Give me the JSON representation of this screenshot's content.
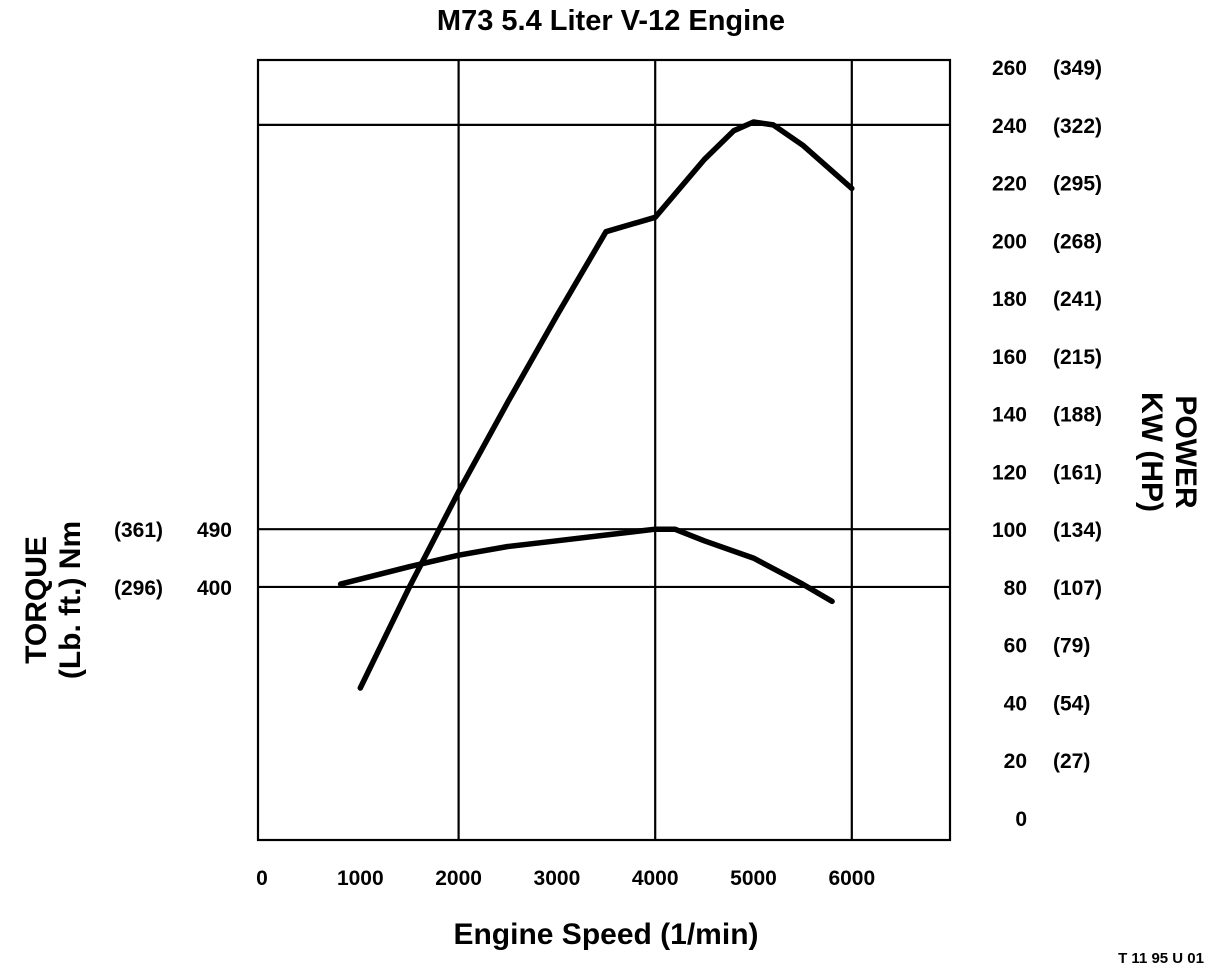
{
  "chart_data": {
    "type": "line",
    "title": "M73 5.4 Liter V-12 Engine",
    "xlabel": "Engine Speed (1/min)",
    "ylabel_left": "TORQUE (Lb. ft.) Nm",
    "ylabel_left_lines": [
      "TORQUE",
      "(Lb. ft.) Nm"
    ],
    "ylabel_right": "POWER KW (HP)",
    "ylabel_right_lines": [
      "POWER",
      "KW (HP)"
    ],
    "xlim": [
      0,
      7000
    ],
    "x_ticks": [
      "0",
      "1000",
      "2000",
      "3000",
      "4000",
      "5000",
      "6000"
    ],
    "x_tick_values": [
      0,
      1000,
      2000,
      3000,
      4000,
      5000,
      6000
    ],
    "x_gridlines": [
      2000,
      4000,
      6000
    ],
    "power_axis": {
      "ylim": [
        0,
        270
      ],
      "ticks_kw": [
        "0",
        "20",
        "40",
        "60",
        "80",
        "100",
        "120",
        "140",
        "160",
        "180",
        "200",
        "220",
        "240",
        "260"
      ],
      "tick_values": [
        0,
        20,
        40,
        60,
        80,
        100,
        120,
        140,
        160,
        180,
        200,
        220,
        240,
        260
      ],
      "ticks_hp": [
        "",
        "(27)",
        "(54)",
        "(79)",
        "(107)",
        "(134)",
        "(161)",
        "(188)",
        "(215)",
        "(241)",
        "(268)",
        "(295)",
        "(322)",
        "(349)"
      ],
      "gridline_values": [
        240
      ]
    },
    "torque_axis": {
      "ticks_nm": [
        "400",
        "490"
      ],
      "ticks_lbft": [
        "(296)",
        "(361)"
      ],
      "gridlines_at_power_scale": [
        80,
        100
      ]
    },
    "series": [
      {
        "axis": "power",
        "x": [
          1000,
          1500,
          2000,
          2500,
          3000,
          3500,
          4000,
          4500,
          4800,
          5000,
          5200,
          5500,
          6000
        ],
        "values": [
          45,
          80,
          113,
          144,
          174,
          203,
          208,
          228,
          238,
          241,
          240,
          233,
          218
        ]
      },
      {
        "axis": "power",
        "x": [
          800,
          1500,
          2000,
          2500,
          3000,
          3500,
          4000,
          4200,
          4500,
          5000,
          5500,
          5800
        ],
        "values": [
          81,
          87,
          91,
          94,
          96,
          98,
          100,
          100,
          96,
          90,
          81,
          75
        ]
      }
    ],
    "grid": "partial",
    "colors": {
      "line": "#000000",
      "background": "#ffffff"
    }
  },
  "figure_code": "T 11 95 U 01"
}
